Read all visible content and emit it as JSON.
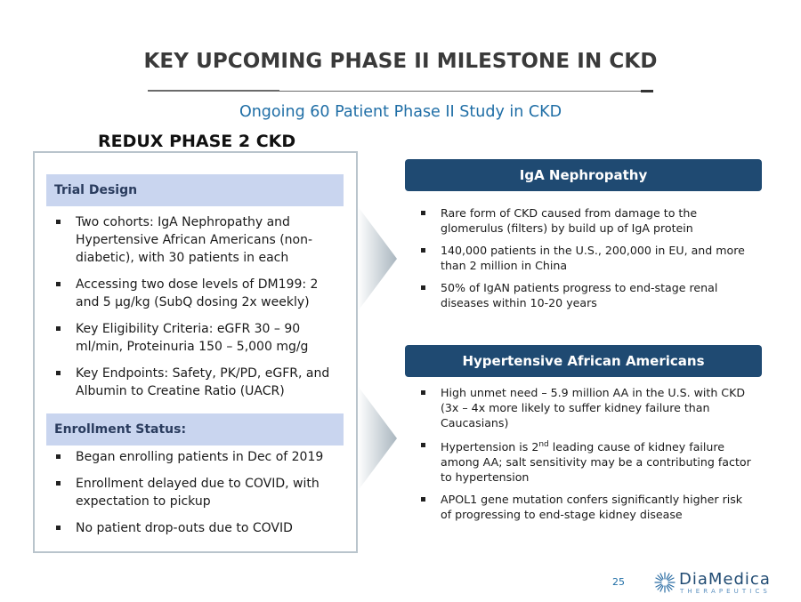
{
  "slide": {
    "title": "KEY UPCOMING PHASE II MILESTONE IN CKD",
    "subtitle": "Ongoing 60 Patient Phase II Study in CKD",
    "page_number": "25"
  },
  "left_panel": {
    "heading": "REDUX PHASE 2 CKD",
    "trial_design": {
      "label": "Trial Design",
      "bullets": [
        "Two cohorts: IgA Nephropathy and Hypertensive African Americans (non-diabetic), with 30 patients in each",
        "Accessing two dose levels of DM199: 2 and 5 µg/kg (SubQ dosing 2x weekly)",
        "Key Eligibility Criteria: eGFR 30 – 90 ml/min, Proteinuria 150 – 5,000 mg/g",
        "Key Endpoints: Safety, PK/PD, eGFR, and Albumin to Creatine Ratio (UACR)"
      ]
    },
    "enrollment": {
      "label": "Enrollment Status:",
      "bullets": [
        "Began enrolling patients in Dec of 2019",
        "Enrollment delayed due to COVID, with expectation to pickup",
        "No patient drop-outs due to COVID"
      ]
    }
  },
  "right_panel": {
    "iga": {
      "label": "IgA Nephropathy",
      "bullets": [
        "Rare form of CKD caused from damage to the glomerulus (filters) by build up of IgA protein",
        "140,000 patients in the U.S., 200,000 in EU, and more than 2 million in China",
        "50% of IgAN patients progress to end-stage renal diseases within 10-20 years"
      ]
    },
    "haa": {
      "label": "Hypertensive African Americans",
      "bullets": [
        "High unmet need – 5.9 million AA in the U.S. with CKD (3x – 4x more likely to suffer kidney failure than Caucasians)",
        "Hypertension is 2nd leading cause of kidney failure among AA; salt sensitivity may be a contributing factor to hypertension",
        "APOL1 gene mutation confers significantly higher risk of progressing to end-stage kidney disease"
      ]
    }
  },
  "logo": {
    "name": "DiaMedica",
    "tagline": "THERAPEUTICS",
    "icon": "starburst-icon"
  },
  "colors": {
    "title": "#3a3a3a",
    "subtitle_blue": "#1f6ea6",
    "navy_bar": "#1f4a72",
    "light_bar": "#c9d5ef",
    "box_border": "#b9c4cc"
  }
}
